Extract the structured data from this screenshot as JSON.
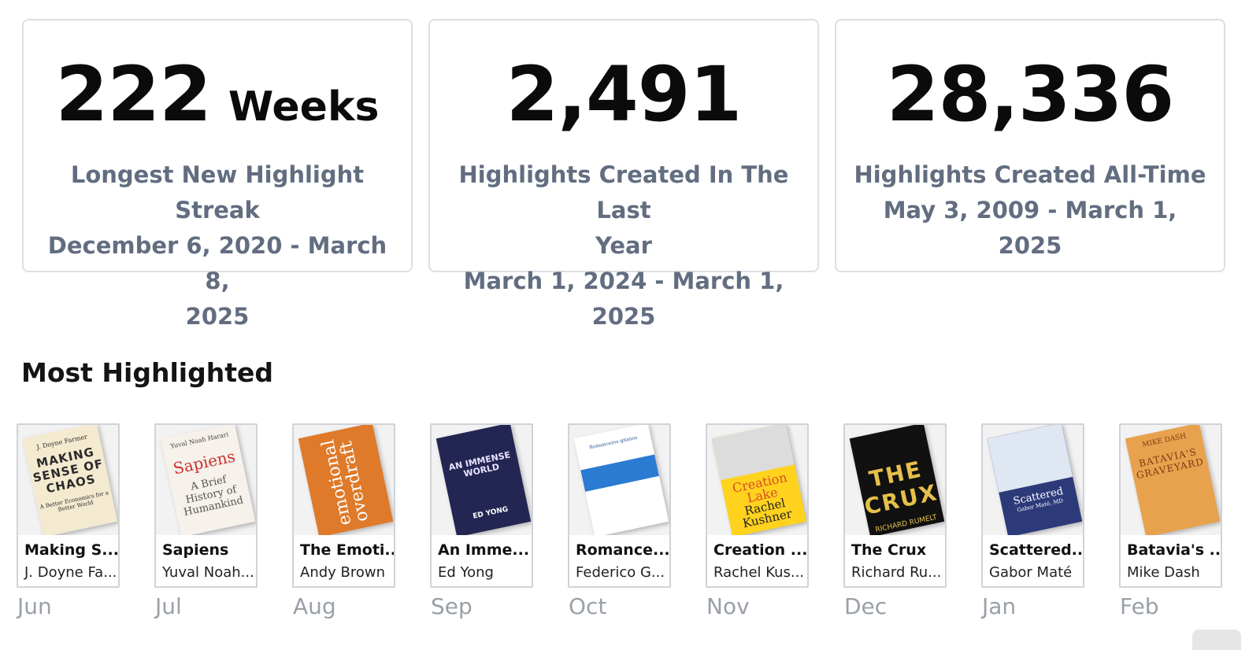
{
  "stats": [
    {
      "value": "222",
      "unit": "Weeks",
      "lines": [
        "Longest New Highlight Streak",
        "December 6, 2020 - March 8,",
        "2025"
      ]
    },
    {
      "value": "2,491",
      "unit": "",
      "lines": [
        "Highlights Created In The Last",
        "Year",
        "March 1, 2024 - March 1, 2025"
      ]
    },
    {
      "value": "28,336",
      "unit": "",
      "lines": [
        "Highlights Created All-Time",
        "May 3, 2009 - March 1, 2025"
      ]
    }
  ],
  "section_title": "Most Highlighted",
  "books": [
    {
      "title": "Making S...",
      "author": "J. Doyne Fa...",
      "month": "Jun",
      "cover": {
        "author": "J. Doyne Farmer",
        "title": "MAKING SENSE OF CHAOS",
        "subtitle": "A Better Economics for a Better World"
      }
    },
    {
      "title": "Sapiens",
      "author": "Yuval Noah...",
      "month": "Jul",
      "cover": {
        "author": "Yuval Noah Harari",
        "title": "Sapiens",
        "subtitle": "A Brief History of Humankind"
      }
    },
    {
      "title": "The Emoti...",
      "author": "Andy Brown",
      "month": "Aug",
      "cover": {
        "title": "emotional overdraft"
      }
    },
    {
      "title": "An Imme...",
      "author": "Ed Yong",
      "month": "Sep",
      "cover": {
        "title": "AN IMMENSE WORLD",
        "author": "ED YONG"
      }
    },
    {
      "title": "Romance...",
      "author": "Federico G...",
      "month": "Oct",
      "cover": {
        "author": "Romanceros gitanos"
      }
    },
    {
      "title": "Creation ...",
      "author": "Rachel Kus...",
      "month": "Nov",
      "cover": {
        "title": "Creation Lake",
        "author": "Rachel Kushner"
      }
    },
    {
      "title": "The Crux",
      "author": "Richard Ru...",
      "month": "Dec",
      "cover": {
        "title": "THE CRUX",
        "author": "RICHARD RUMELT"
      }
    },
    {
      "title": "Scattered...",
      "author": "Gabor Maté",
      "month": "Jan",
      "cover": {
        "title": "Scattered",
        "author": "Gabor Maté, MD"
      }
    },
    {
      "title": "Batavia's ...",
      "author": "Mike Dash",
      "month": "Feb",
      "cover": {
        "author": "MIKE DASH",
        "title": "BATAVIA'S GRAVEYARD"
      }
    }
  ]
}
